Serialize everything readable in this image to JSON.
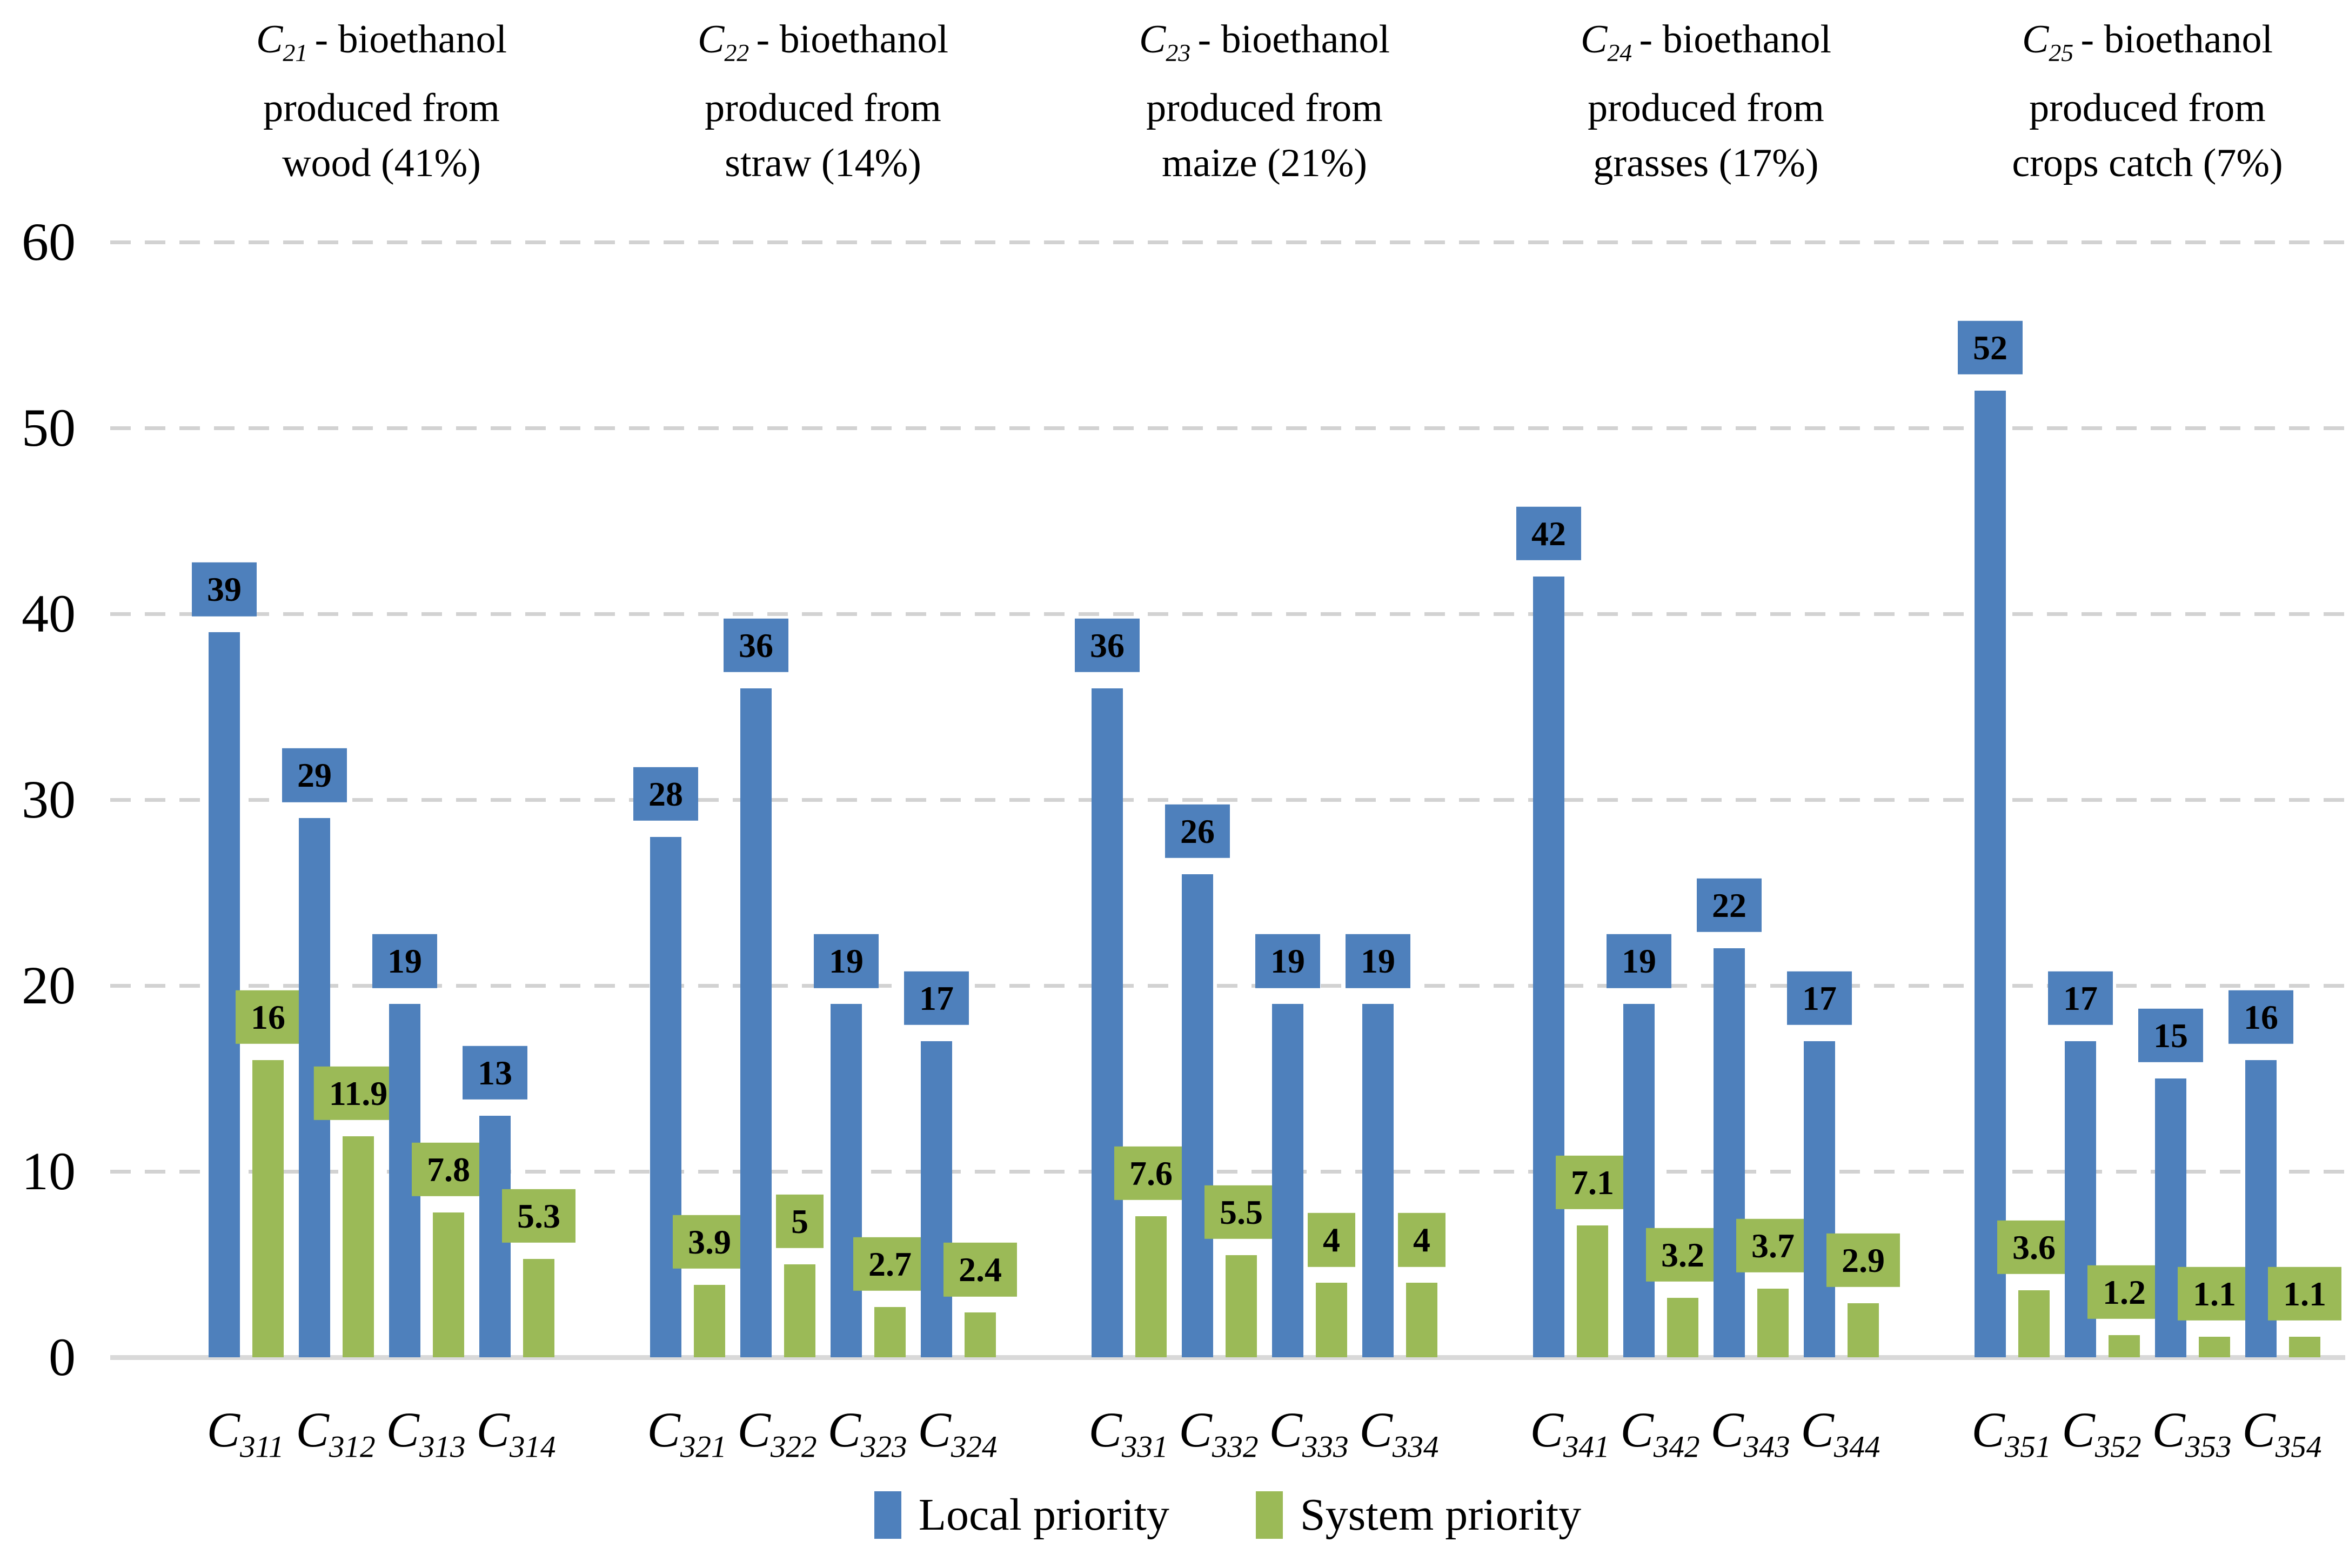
{
  "colors": {
    "local": "#4E80BC",
    "system": "#9BBA57",
    "gridline": "#D2D2D2",
    "axis_line": "#D9D9D9",
    "label_text": "#000000"
  },
  "legend": {
    "items": [
      {
        "key": "local",
        "label": "Local priority"
      },
      {
        "key": "system",
        "label": "System priority"
      }
    ]
  },
  "chart_data": {
    "type": "bar",
    "title": "",
    "xlabel": "",
    "ylabel": "",
    "ylim": [
      0,
      60
    ],
    "yticks": [
      0,
      10,
      20,
      30,
      40,
      50,
      60
    ],
    "grid": "horizontal dashed",
    "legend_position": "bottom",
    "series_names": [
      "Local priority",
      "System priority"
    ],
    "groups": [
      {
        "title": {
          "c": "C",
          "sub": "21",
          "line1_rest": "- bioethanol",
          "line2": "produced from",
          "line3": "wood (41%)"
        },
        "items": [
          {
            "c": "C",
            "sub": "311",
            "local": 39,
            "system": 16
          },
          {
            "c": "C",
            "sub": "312",
            "local": 29,
            "system": 11.9
          },
          {
            "c": "C",
            "sub": "313",
            "local": 19,
            "system": 7.8
          },
          {
            "c": "C",
            "sub": "314",
            "local": 13,
            "system": 5.3
          }
        ]
      },
      {
        "title": {
          "c": "C",
          "sub": "22",
          "line1_rest": "- bioethanol",
          "line2": "produced from",
          "line3": "straw (14%)"
        },
        "items": [
          {
            "c": "C",
            "sub": "321",
            "local": 28,
            "system": 3.9
          },
          {
            "c": "C",
            "sub": "322",
            "local": 36,
            "system": 5
          },
          {
            "c": "C",
            "sub": "323",
            "local": 19,
            "system": 2.7
          },
          {
            "c": "C",
            "sub": "324",
            "local": 17,
            "system": 2.4
          }
        ]
      },
      {
        "title": {
          "c": "C",
          "sub": "23",
          "line1_rest": "- bioethanol",
          "line2": "produced from",
          "line3": "maize (21%)"
        },
        "items": [
          {
            "c": "C",
            "sub": "331",
            "local": 36,
            "system": 7.6
          },
          {
            "c": "C",
            "sub": "332",
            "local": 26,
            "system": 5.5
          },
          {
            "c": "C",
            "sub": "333",
            "local": 19,
            "system": 4
          },
          {
            "c": "C",
            "sub": "334",
            "local": 19,
            "system": 4
          }
        ]
      },
      {
        "title": {
          "c": "C",
          "sub": "24",
          "line1_rest": "- bioethanol",
          "line2": "produced from",
          "line3": "grasses (17%)"
        },
        "items": [
          {
            "c": "C",
            "sub": "341",
            "local": 42,
            "system": 7.1
          },
          {
            "c": "C",
            "sub": "342",
            "local": 19,
            "system": 3.2
          },
          {
            "c": "C",
            "sub": "343",
            "local": 22,
            "system": 3.7
          },
          {
            "c": "C",
            "sub": "344",
            "local": 17,
            "system": 2.9
          }
        ]
      },
      {
        "title": {
          "c": "C",
          "sub": "25",
          "line1_rest": "- bioethanol",
          "line2": "produced from",
          "line3": "crops catch (7%)"
        },
        "items": [
          {
            "c": "C",
            "sub": "351",
            "local": 52,
            "system": 3.6
          },
          {
            "c": "C",
            "sub": "352",
            "local": 17,
            "system": 1.2
          },
          {
            "c": "C",
            "sub": "353",
            "local": 15,
            "system": 1.1
          },
          {
            "c": "C",
            "sub": "354",
            "local": 16,
            "system": 1.1
          }
        ]
      }
    ]
  }
}
